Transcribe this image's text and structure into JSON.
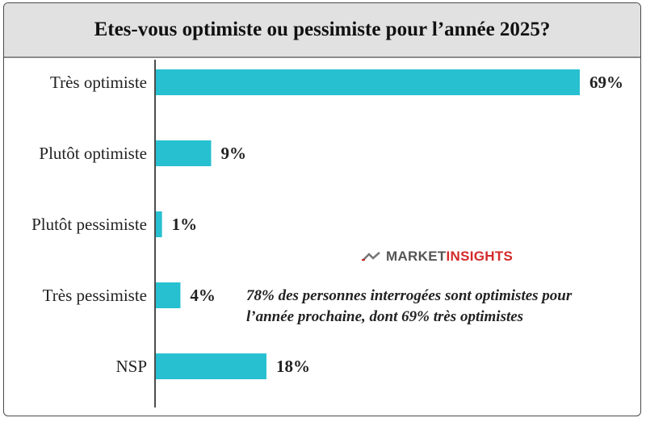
{
  "title": "Etes-vous optimiste ou pessimiste pour l’année 2025?",
  "logo": {
    "part1": "MARKET",
    "part2": "INSIGHTS"
  },
  "annotation": {
    "line1": "78% des personnes interrogées sont optimistes pour",
    "line2": "l’année prochaine, dont 69% très optimistes"
  },
  "colors": {
    "bar": "#26c0d0",
    "logo_accent": "#d42a2a",
    "title_bg": "#e1e1e1"
  },
  "chart_data": {
    "type": "bar",
    "orientation": "horizontal",
    "title": "Etes-vous optimiste ou pessimiste pour l’année 2025?",
    "categories": [
      "Très optimiste",
      "Plutôt optimiste",
      "Plutôt pessimiste",
      "Très pessimiste",
      "NSP"
    ],
    "values": [
      69,
      9,
      1,
      4,
      18
    ],
    "value_labels": [
      "69%",
      "9%",
      "1%",
      "4%",
      "18%"
    ],
    "unit": "%",
    "xlim": [
      0,
      69
    ],
    "grid": false,
    "legend": "none"
  }
}
